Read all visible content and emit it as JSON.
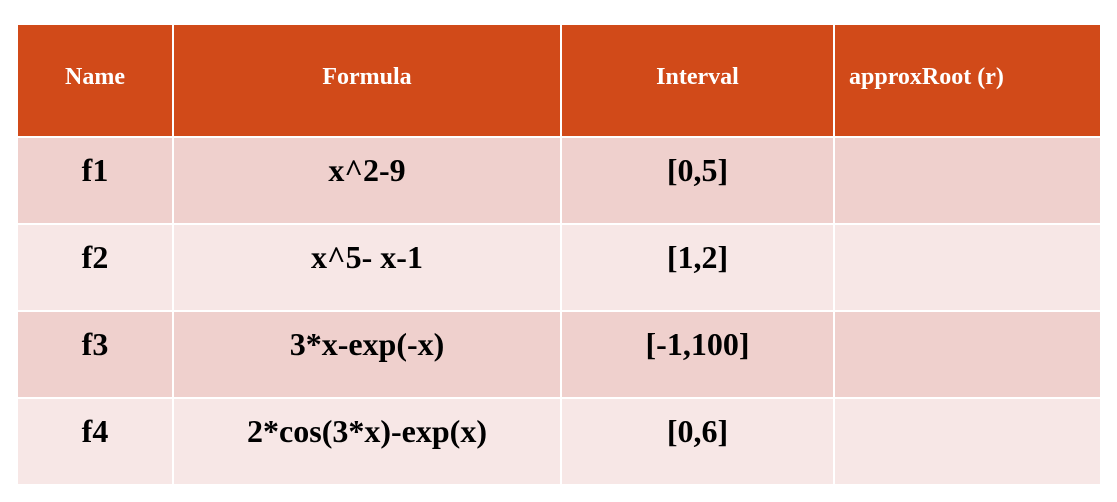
{
  "table": {
    "header": [
      "Name",
      "Formula",
      "Interval",
      "approxRoot (r)"
    ],
    "rows": [
      [
        "f1",
        "x^2-9",
        "[0,5]"
      ],
      [
        "f2",
        "x^5- x-1",
        "[1,2]"
      ],
      [
        "f3",
        "3*x-exp(-x)",
        "[-1,100]"
      ],
      [
        "f4",
        "2*cos(3*x)-exp(x)",
        "[0,6]"
      ]
    ]
  }
}
